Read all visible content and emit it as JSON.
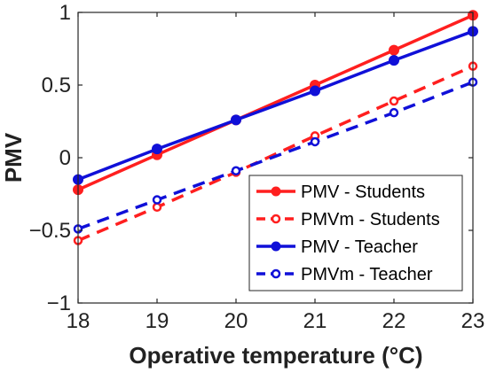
{
  "chart_data": {
    "type": "line",
    "xlabel": "Operative temperature (°C)",
    "ylabel": "PMV",
    "xlim": [
      18,
      23
    ],
    "ylim": [
      -1,
      1
    ],
    "x_ticks": [
      "18",
      "19",
      "20",
      "21",
      "22",
      "23"
    ],
    "y_ticks": [
      "−1",
      "−0.5",
      "0",
      "0.5",
      "1"
    ],
    "x": [
      18,
      19,
      20,
      21,
      22,
      23
    ],
    "grid": false,
    "legend_position": "bottom-right",
    "series": [
      {
        "name": "PMV - Students",
        "color": "#ff1f1f",
        "style": "solid",
        "marker": "filled",
        "values": [
          -0.22,
          0.02,
          0.26,
          0.5,
          0.74,
          0.98
        ]
      },
      {
        "name": "PMVm - Students",
        "color": "#ff1f1f",
        "style": "dashed",
        "marker": "open",
        "values": [
          -0.57,
          -0.34,
          -0.1,
          0.15,
          0.39,
          0.63
        ]
      },
      {
        "name": "PMV - Teacher",
        "color": "#1010d8",
        "style": "solid",
        "marker": "filled",
        "values": [
          -0.15,
          0.06,
          0.26,
          0.46,
          0.67,
          0.87
        ]
      },
      {
        "name": "PMVm - Teacher",
        "color": "#1010d8",
        "style": "dashed",
        "marker": "open",
        "values": [
          -0.49,
          -0.29,
          -0.09,
          0.11,
          0.31,
          0.52
        ]
      }
    ]
  }
}
